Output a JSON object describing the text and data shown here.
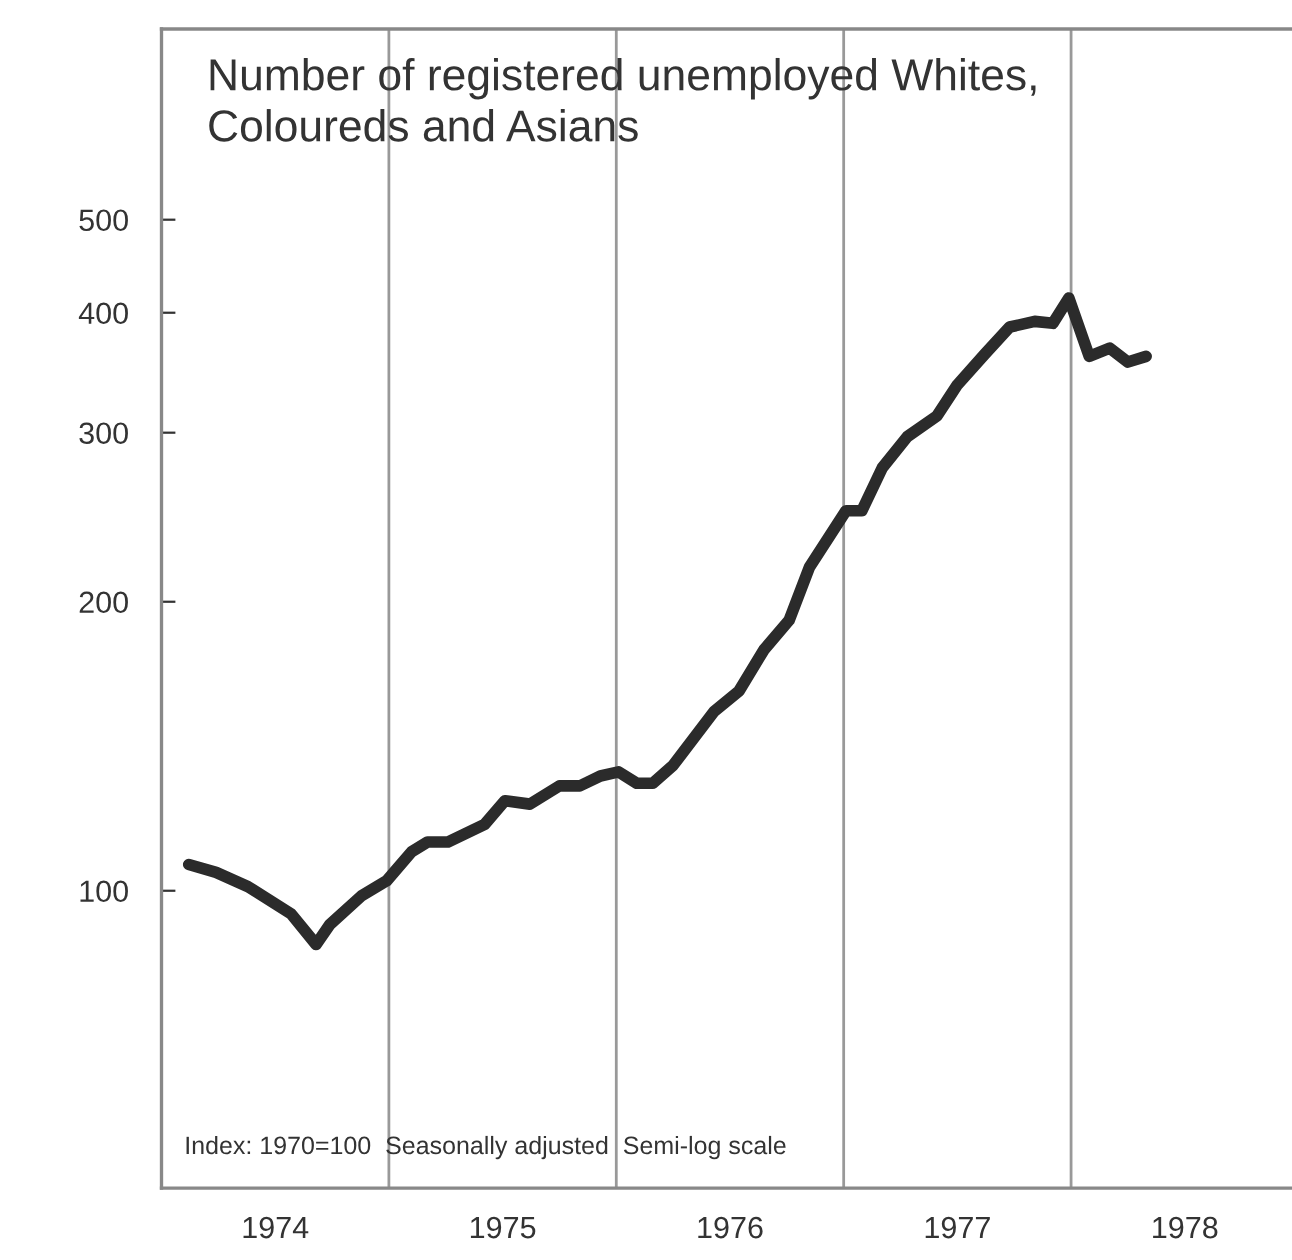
{
  "chart_data": {
    "type": "line",
    "title": "Number of registered unemployed Whites,\nColoureds and Asians",
    "annotations": [
      "Index: 1970=100  Seasonally adjusted  Semi-log scale"
    ],
    "x": [
      1974.12,
      1974.24,
      1974.38,
      1974.57,
      1974.68,
      1974.74,
      1974.88,
      1974.99,
      1975.1,
      1975.17,
      1975.26,
      1975.42,
      1975.51,
      1975.62,
      1975.75,
      1975.84,
      1975.93,
      1976.01,
      1976.09,
      1976.16,
      1976.25,
      1976.43,
      1976.54,
      1976.65,
      1976.76,
      1976.85,
      1977.01,
      1977.08,
      1977.17,
      1977.28,
      1977.41,
      1977.5,
      1977.62,
      1977.73,
      1977.84,
      1977.92,
      1977.99,
      1978.08,
      1978.17,
      1978.25,
      1978.33
    ],
    "series": [
      {
        "color": "#2b2b2b",
        "values": [
          106.5,
          104.5,
          101,
          94.6,
          87.9,
          92.2,
          98.8,
          102.4,
          109.8,
          112.4,
          112.4,
          117.2,
          124.1,
          123.1,
          128.6,
          128.6,
          131.7,
          133,
          129.4,
          129.4,
          135.1,
          153.7,
          161.5,
          178.3,
          191.3,
          217.4,
          248.8,
          248.8,
          275.8,
          297.2,
          312.3,
          336.5,
          362.1,
          386.5,
          391.8,
          390,
          414.4,
          360.3,
          367.5,
          355.4,
          360.3
        ]
      }
    ],
    "log": "y",
    "xlim": [
      1974,
      1979
    ],
    "xticks": [
      {
        "value": 1974.5,
        "label": "1974"
      },
      {
        "value": 1975.5,
        "label": "1975"
      },
      {
        "value": 1976.5,
        "label": "1976"
      },
      {
        "value": 1977.5,
        "label": "1977"
      },
      {
        "value": 1978.5,
        "label": "1978"
      }
    ],
    "ylim": [
      49,
      790
    ],
    "yticks": [
      100,
      200,
      300,
      400,
      500
    ],
    "ref_lines": [
      {
        "axis": "x",
        "value": 1975,
        "color": "#999999"
      },
      {
        "axis": "x",
        "value": 1976,
        "color": "#999999"
      },
      {
        "axis": "x",
        "value": 1977,
        "color": "#999999"
      },
      {
        "axis": "x",
        "value": 1978,
        "color": "#999999"
      }
    ],
    "grid": false,
    "legend": false,
    "line_style": "solid",
    "marker": "none"
  }
}
